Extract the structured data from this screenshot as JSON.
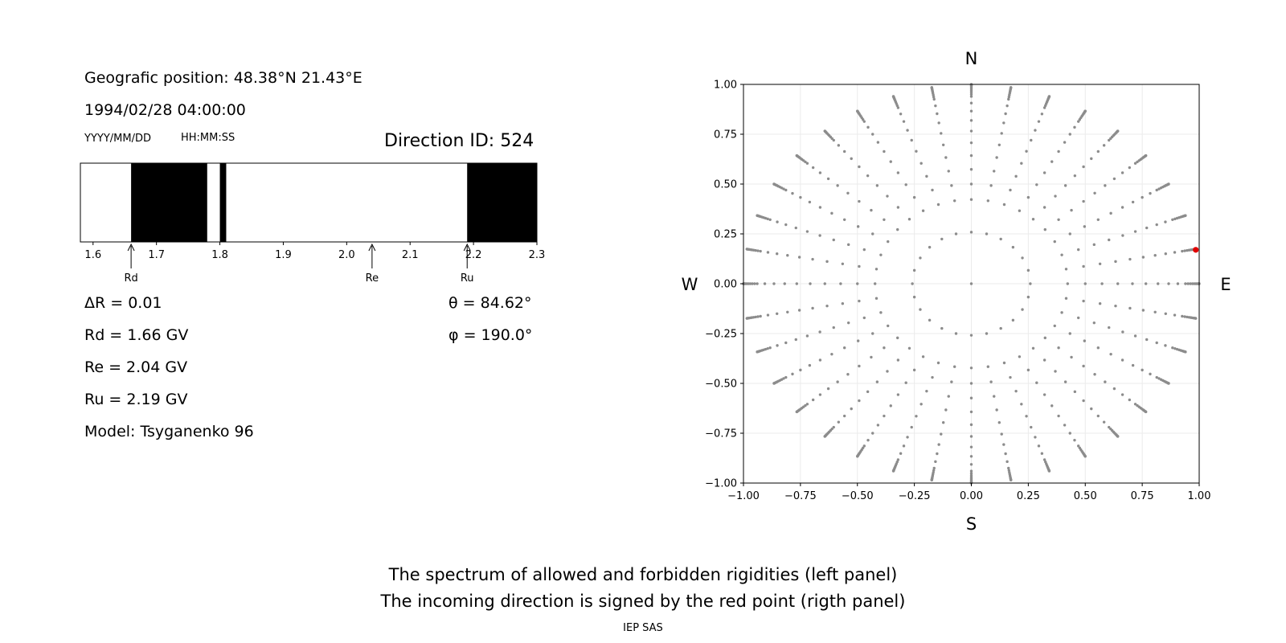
{
  "left_panel": {
    "position": "Geografic position: 48.38°N 21.43°E",
    "datetime": "1994/02/28 04:00:00",
    "date_format": "YYYY/MM/DD",
    "time_format": "HH:MM:SS",
    "direction_id": "Direction ID: 524",
    "params": {
      "delta_r": "ΔR = 0.01",
      "rd": "Rd = 1.66 GV",
      "re": "Re = 2.04 GV",
      "ru": "Ru = 2.19 GV",
      "model": "Model: Tsyganenko 96",
      "theta": "θ = 84.62°",
      "phi": "φ = 190.0°"
    }
  },
  "chart_data": [
    {
      "type": "bar",
      "title": "",
      "xlim": [
        1.58,
        2.3
      ],
      "xticks": [
        "1.6",
        "1.7",
        "1.8",
        "1.9",
        "2.0",
        "2.1",
        "2.2",
        "2.3"
      ],
      "forbidden_intervals": [
        [
          1.66,
          1.78
        ],
        [
          1.8,
          1.81
        ],
        [
          2.19,
          2.3
        ]
      ],
      "markers": [
        {
          "label": "Rd",
          "value": 1.66
        },
        {
          "label": "Re",
          "value": 2.04
        },
        {
          "label": "Ru",
          "value": 2.19
        }
      ]
    },
    {
      "type": "scatter",
      "xlim": [
        -1,
        1
      ],
      "ylim": [
        -1,
        1
      ],
      "grid": true,
      "xticks": [
        "−1.00",
        "−0.75",
        "−0.50",
        "−0.25",
        "0.00",
        "0.25",
        "0.50",
        "0.75",
        "1.00"
      ],
      "yticks": [
        "1.00",
        "0.75",
        "0.50",
        "0.25",
        "0.00",
        "−0.25",
        "−0.50",
        "−0.75",
        "−1.00"
      ],
      "directions": {
        "N": "N",
        "S": "S",
        "W": "W",
        "E": "E"
      },
      "grid_points": {
        "zenith_deg": [
          15,
          25,
          30,
          35,
          40,
          45,
          50,
          55,
          60,
          65,
          70,
          72,
          74,
          76,
          78,
          80,
          82,
          84,
          86,
          88,
          90
        ],
        "azimuth_step_deg": 10,
        "inner_ring_azimuth_step_deg": 15,
        "color": "#8c8c8c"
      },
      "highlight": {
        "x": 0.985,
        "y": 0.17,
        "color": "#e00000"
      }
    }
  ],
  "captions": {
    "line1": "The spectrum of allowed and forbidden rigidities (left panel)",
    "line2": "The incoming direction is signed by the red point (rigth panel)",
    "footer": "IEP SAS"
  }
}
